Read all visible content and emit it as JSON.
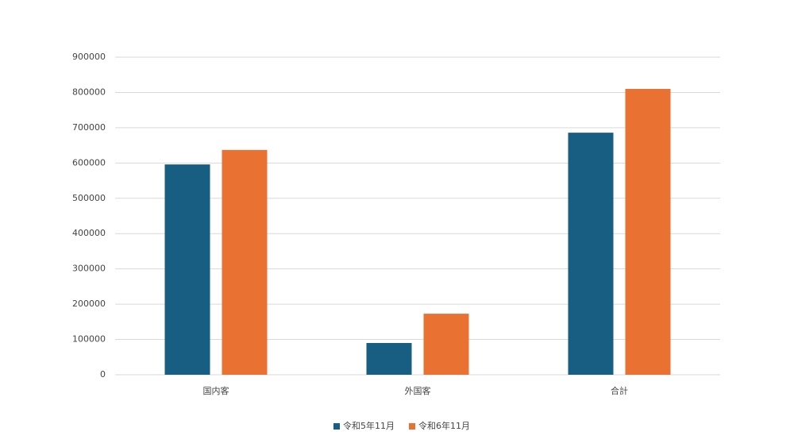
{
  "chart_data": {
    "type": "bar",
    "categories": [
      "国内客",
      "外国客",
      "合計"
    ],
    "series": [
      {
        "name": "令和5年11月",
        "color": "#175e82",
        "values": [
          596000,
          90000,
          686000
        ]
      },
      {
        "name": "令和6年11月",
        "color": "#e97132",
        "values": [
          637000,
          173000,
          810000
        ]
      }
    ],
    "ylim": [
      0,
      900000
    ],
    "yticks": [
      0,
      100000,
      200000,
      300000,
      400000,
      500000,
      600000,
      700000,
      800000,
      900000
    ],
    "grid": true,
    "legend": "bottom"
  }
}
